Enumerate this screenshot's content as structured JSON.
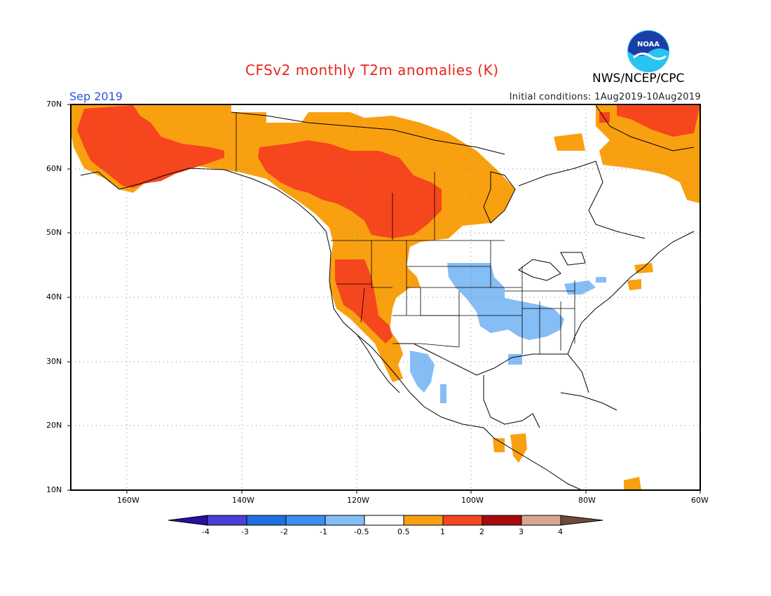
{
  "header": {
    "title": "CFSv2 monthly T2m anomalies (K)",
    "agency": "NWS/NCEP/CPC",
    "month": "Sep 2019",
    "initial_conditions": "Initial conditions: 1Aug2019-10Aug2019",
    "logo_text": "NOAA"
  },
  "axes": {
    "lat_labels": [
      "70N",
      "60N",
      "50N",
      "40N",
      "30N",
      "20N",
      "10N"
    ],
    "lon_labels": [
      "160W",
      "140W",
      "120W",
      "100W",
      "80W",
      "60W"
    ]
  },
  "colorbar": {
    "labels": [
      "-4",
      "-3",
      "-2",
      "-1",
      "-0.5",
      "0.5",
      "1",
      "2",
      "3",
      "4"
    ],
    "colors": [
      "#2a0ea0",
      "#4a3fd6",
      "#1f6fe0",
      "#3d8ef0",
      "#85bdf5",
      "#ffffff",
      "#f9a011",
      "#f6461d",
      "#a80b0b",
      "#d7a890",
      "#6d4a3a"
    ]
  },
  "map_regions": {
    "warm_orange": "#f9a011",
    "warm_red": "#f6461d",
    "cool_blue": "#85bdf5"
  }
}
